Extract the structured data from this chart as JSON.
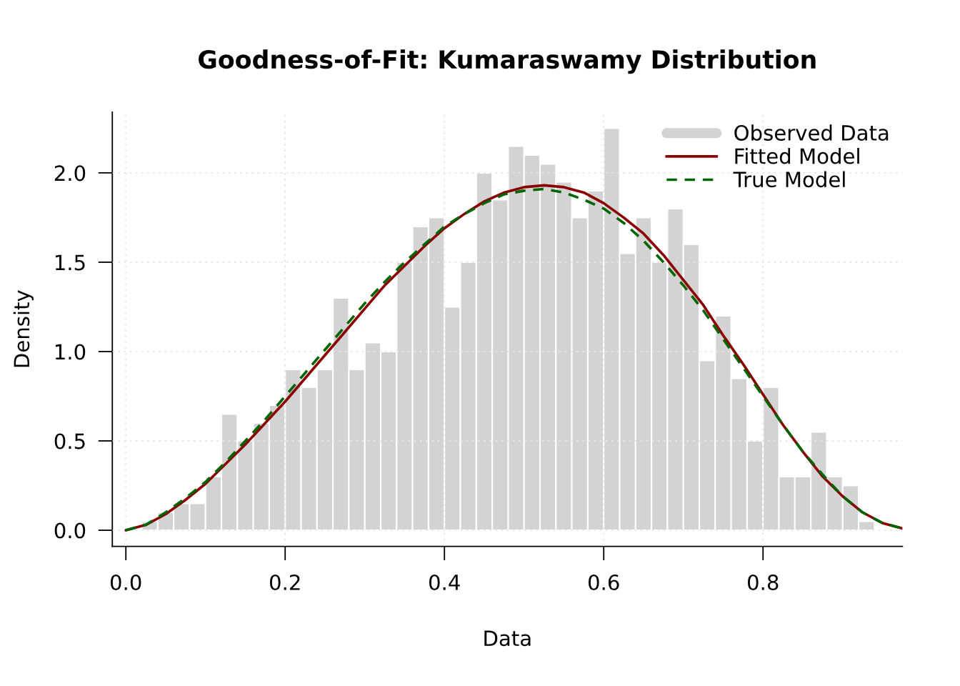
{
  "chart_data": {
    "type": "histogram",
    "title": "Goodness-of-Fit: Kumaraswamy Distribution",
    "xlabel": "Data",
    "ylabel": "Density",
    "bins": [
      0.02,
      0.04,
      0.06,
      0.08,
      0.1,
      0.12,
      0.14,
      0.16,
      0.18,
      0.2,
      0.22,
      0.24,
      0.26,
      0.28,
      0.3,
      0.32,
      0.34,
      0.36,
      0.38,
      0.4,
      0.42,
      0.44,
      0.46,
      0.48,
      0.5,
      0.52,
      0.54,
      0.56,
      0.58,
      0.6,
      0.62,
      0.64,
      0.66,
      0.68,
      0.7,
      0.72,
      0.74,
      0.76,
      0.78,
      0.8,
      0.82,
      0.84,
      0.86,
      0.88,
      0.9,
      0.92,
      0.94
    ],
    "series": [
      {
        "name": "Observed Data",
        "color": "#d3d3d3",
        "values": [
          0.05,
          0.1,
          0.15,
          0.15,
          0.3,
          0.65,
          0.5,
          0.6,
          0.7,
          0.9,
          0.8,
          0.9,
          1.3,
          0.9,
          1.05,
          1.0,
          1.5,
          1.7,
          1.75,
          1.25,
          1.5,
          2.0,
          1.85,
          2.15,
          2.1,
          2.05,
          1.95,
          1.75,
          1.9,
          2.25,
          1.55,
          1.75,
          1.5,
          1.8,
          1.6,
          0.95,
          1.2,
          0.85,
          0.5,
          0.8,
          0.3,
          0.3,
          0.55,
          0.3,
          0.25,
          0.05
        ]
      },
      {
        "name": "Fitted Model",
        "type": "line",
        "color": "#8b0000",
        "line_style": "solid",
        "x": [
          0,
          0.025,
          0.05,
          0.075,
          0.1,
          0.125,
          0.15,
          0.175,
          0.2,
          0.225,
          0.25,
          0.275,
          0.3,
          0.325,
          0.35,
          0.375,
          0.4,
          0.425,
          0.45,
          0.475,
          0.5,
          0.525,
          0.55,
          0.575,
          0.6,
          0.625,
          0.65,
          0.675,
          0.7,
          0.725,
          0.75,
          0.775,
          0.8,
          0.825,
          0.85,
          0.875,
          0.9,
          0.925,
          0.95,
          0.975
        ],
        "values": [
          0,
          0.03,
          0.09,
          0.17,
          0.26,
          0.37,
          0.48,
          0.6,
          0.72,
          0.85,
          0.98,
          1.11,
          1.24,
          1.37,
          1.48,
          1.59,
          1.69,
          1.77,
          1.84,
          1.89,
          1.92,
          1.93,
          1.92,
          1.89,
          1.83,
          1.75,
          1.66,
          1.54,
          1.4,
          1.26,
          1.09,
          0.93,
          0.76,
          0.59,
          0.44,
          0.3,
          0.19,
          0.1,
          0.04,
          0.01
        ]
      },
      {
        "name": "True Model",
        "type": "line",
        "color": "#006400",
        "line_style": "dashed",
        "x": [
          0,
          0.025,
          0.05,
          0.075,
          0.1,
          0.125,
          0.15,
          0.175,
          0.2,
          0.225,
          0.25,
          0.275,
          0.3,
          0.325,
          0.35,
          0.375,
          0.4,
          0.425,
          0.45,
          0.475,
          0.5,
          0.525,
          0.55,
          0.575,
          0.6,
          0.625,
          0.65,
          0.675,
          0.7,
          0.725,
          0.75,
          0.775,
          0.8,
          0.825,
          0.85,
          0.875,
          0.9,
          0.925,
          0.95,
          0.975
        ],
        "values": [
          0,
          0.03,
          0.1,
          0.18,
          0.27,
          0.38,
          0.5,
          0.62,
          0.75,
          0.88,
          1.01,
          1.14,
          1.27,
          1.39,
          1.5,
          1.6,
          1.7,
          1.77,
          1.83,
          1.88,
          1.9,
          1.91,
          1.89,
          1.85,
          1.8,
          1.72,
          1.62,
          1.5,
          1.37,
          1.23,
          1.07,
          0.91,
          0.75,
          0.59,
          0.44,
          0.31,
          0.19,
          0.1,
          0.04,
          0.01
        ]
      }
    ],
    "xlim": [
      -0.017,
      0.975
    ],
    "ylim": [
      -0.09,
      2.34
    ],
    "xticks": [
      {
        "value": 0,
        "label": "0.0"
      },
      0.2,
      0.4,
      0.6,
      0.8
    ],
    "yticks": [
      {
        "value": 0,
        "label": "0.0"
      },
      0.5,
      {
        "value": 1,
        "label": "1.0"
      },
      1.5,
      {
        "value": 2,
        "label": "2.0"
      }
    ],
    "grid": true,
    "legend": "top right"
  }
}
